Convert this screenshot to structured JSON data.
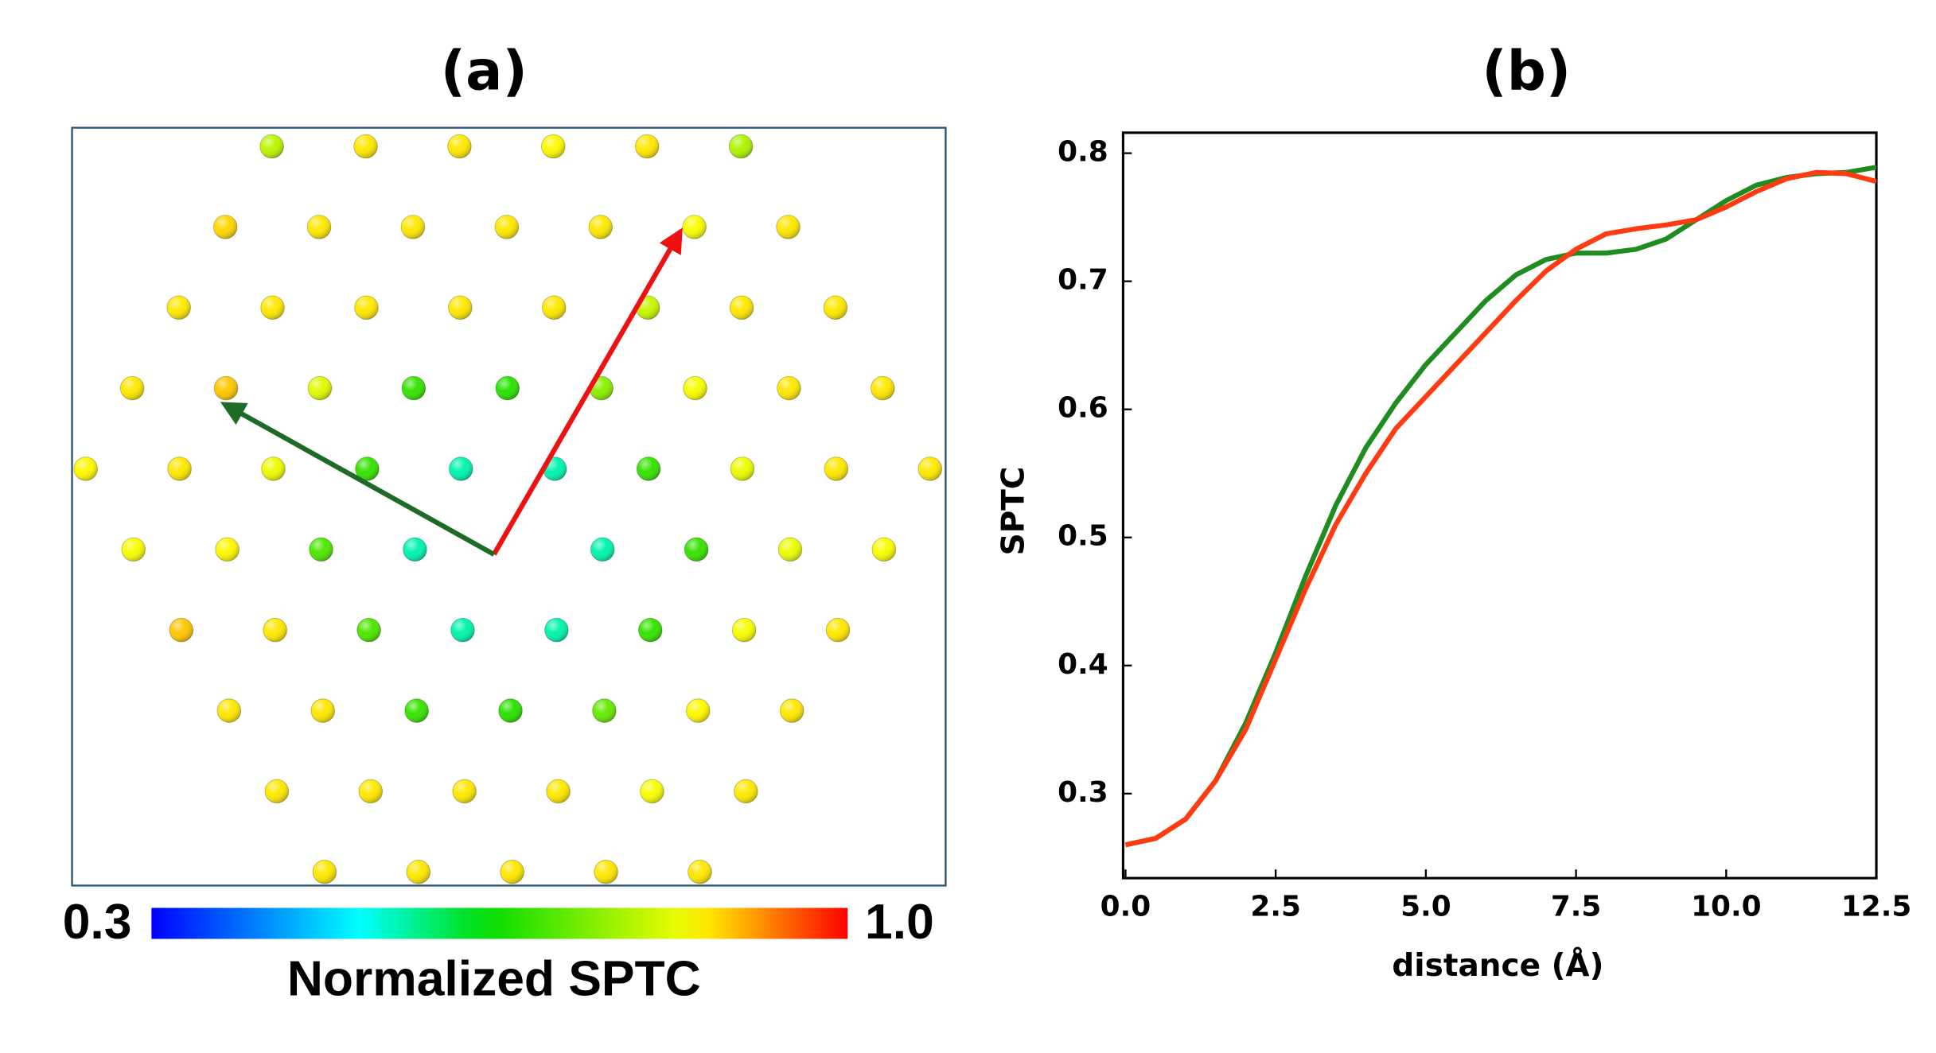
{
  "chart_data": [
    {
      "type": "lattice",
      "title": "(a)",
      "colormap": "jet",
      "values": [
        [
          0.79,
          0.86,
          0.86,
          0.85,
          0.86,
          0.78
        ],
        [
          0.87,
          0.86,
          0.86,
          0.86,
          0.86,
          0.84,
          0.86
        ],
        [
          0.86,
          0.86,
          0.86,
          0.86,
          0.86,
          0.8,
          0.86,
          0.86
        ],
        [
          0.86,
          0.88,
          0.82,
          0.68,
          0.67,
          0.75,
          0.84,
          0.86,
          0.86
        ],
        [
          0.85,
          0.86,
          0.83,
          0.68,
          0.55,
          0.55,
          0.68,
          0.83,
          0.86,
          0.86
        ],
        [
          0.84,
          0.85,
          0.7,
          0.55,
          null,
          0.55,
          0.68,
          0.83,
          0.84
        ],
        [
          0.88,
          0.86,
          0.7,
          0.55,
          0.55,
          0.68,
          0.84,
          0.86
        ],
        [
          0.86,
          0.86,
          0.68,
          0.67,
          0.72,
          0.85,
          0.86
        ],
        [
          0.86,
          0.86,
          0.86,
          0.86,
          0.84,
          0.86
        ],
        [
          0.86,
          0.86,
          0.86,
          0.86,
          0.86
        ]
      ],
      "clim": [
        0.3,
        1.0
      ],
      "cticks": [
        0.3,
        {
          "value": 1.0,
          "label": "1.0"
        }
      ],
      "colorbar_label": "Normalized SPTC"
    },
    {
      "type": "line",
      "title": "(b)",
      "xlabel": "distance (Å)",
      "ylabel": "SPTC",
      "x": [
        0,
        0.5,
        1,
        1.5,
        2,
        2.5,
        3,
        3.5,
        4,
        4.5,
        5,
        5.5,
        6,
        6.5,
        7,
        7.5,
        8,
        8.5,
        9,
        9.5,
        10,
        10.5,
        11,
        11.5,
        12,
        12.5
      ],
      "series": [
        {
          "color": "#1e8c1e",
          "values": [
            0.26,
            0.265,
            0.28,
            0.31,
            0.355,
            0.41,
            0.47,
            0.525,
            0.57,
            0.605,
            0.635,
            0.66,
            0.685,
            0.705,
            0.717,
            0.722,
            0.722,
            0.725,
            0.733,
            0.748,
            0.763,
            0.775,
            0.781,
            0.784,
            0.785,
            0.789
          ]
        },
        {
          "color": "#ff3b12",
          "values": [
            0.26,
            0.265,
            0.28,
            0.31,
            0.35,
            0.405,
            0.46,
            0.51,
            0.55,
            0.585,
            0.61,
            0.635,
            0.66,
            0.685,
            0.708,
            0.725,
            0.737,
            0.741,
            0.744,
            0.748,
            0.758,
            0.77,
            0.78,
            0.785,
            0.784,
            0.778
          ]
        }
      ],
      "xlim": [
        -0.04,
        12.5
      ],
      "ylim": [
        0.234,
        0.816
      ],
      "xticks": [
        {
          "value": 0,
          "label": "0.0"
        },
        2.5,
        {
          "value": 5,
          "label": "5.0"
        },
        7.5,
        {
          "value": 10,
          "label": "10.0"
        },
        12.5
      ],
      "yticks": [
        0.3,
        0.4,
        0.5,
        0.6,
        0.7,
        0.8
      ]
    }
  ]
}
